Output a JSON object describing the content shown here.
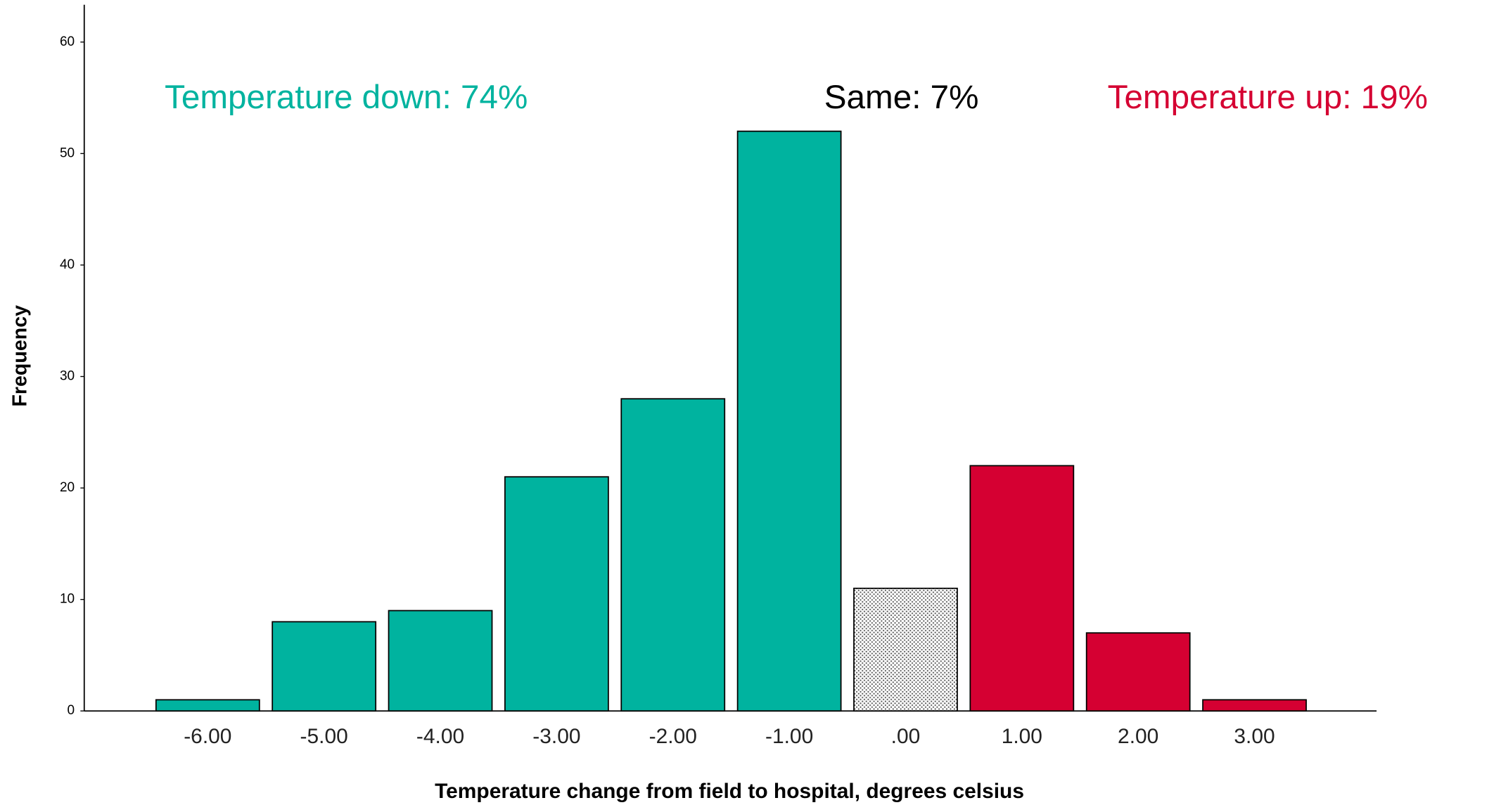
{
  "chart_data": {
    "type": "bar",
    "x_label": "Temperature change from field to hospital, degrees celsius",
    "y_label": "Frequency",
    "categories": [
      "-6.00",
      "-5.00",
      "-4.00",
      "-3.00",
      "-2.00",
      "-1.00",
      ".00",
      "1.00",
      "2.00",
      "3.00"
    ],
    "values": [
      1,
      8,
      9,
      21,
      28,
      52,
      11,
      22,
      7,
      1
    ],
    "colors": [
      "#00b39f",
      "#00b39f",
      "#00b39f",
      "#00b39f",
      "#00b39f",
      "#00b39f",
      "#ffffff",
      "#d50032",
      "#d50032",
      "#d50032"
    ],
    "hatch": [
      null,
      null,
      null,
      null,
      null,
      null,
      "dots",
      null,
      null,
      null
    ],
    "ylim": [
      0,
      63
    ],
    "yticks": [
      0,
      10,
      20,
      30,
      40,
      50,
      60
    ],
    "grid": false,
    "annotations": [
      {
        "text": "Temperature down: 74%",
        "color": "#00b39f"
      },
      {
        "text": "Same: 7%",
        "color": "#000000"
      },
      {
        "text": "Temperature up: 19%",
        "color": "#d50032"
      }
    ]
  }
}
